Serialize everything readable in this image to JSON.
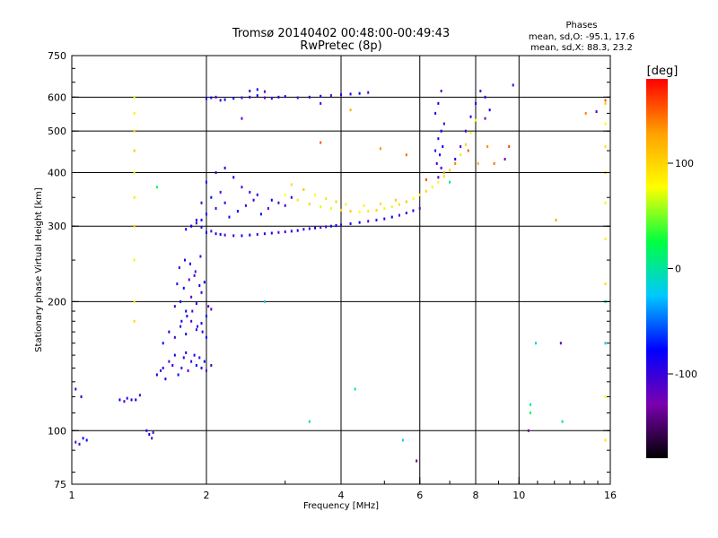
{
  "chart_data": {
    "type": "scatter",
    "title": "Tromsø 20140402 00:48:00-00:49:43",
    "subtitle": "RwPretec (8p)",
    "xlabel": "Frequency [MHz]",
    "ylabel": "Stationary phase Virtual Height [km]",
    "x_scale": "log",
    "y_scale": "log",
    "xlim": [
      1,
      16
    ],
    "ylim": [
      75,
      750
    ],
    "x_ticks": [
      1,
      2,
      4,
      6,
      8,
      10,
      16
    ],
    "x_tick_labels": [
      "1",
      "2",
      "4",
      "6",
      "8",
      "10",
      "16"
    ],
    "y_ticks": [
      75,
      100,
      200,
      300,
      400,
      500,
      600,
      750
    ],
    "y_tick_labels": [
      "75",
      "100",
      "200",
      "300",
      "400",
      "500",
      "600",
      "750"
    ],
    "grid": true,
    "stats": {
      "heading": "Phases",
      "line_o": "mean, sd,O: -95.1, 17.6",
      "line_x": "mean, sd,X:  88.3, 23.2"
    },
    "colorbar": {
      "label": "[deg]",
      "range": [
        -180,
        180
      ],
      "ticks": [
        100,
        0,
        -100
      ],
      "tick_labels": [
        "100",
        "0",
        "-100"
      ],
      "colors": [
        "#000000",
        "#7a00b0",
        "#0000ff",
        "#00c8ff",
        "#00ff40",
        "#ffff00",
        "#ffa000",
        "#ff0000"
      ]
    },
    "series": [
      {
        "phase": -95,
        "x": [
          1.02,
          1.04,
          1.06,
          1.08,
          1.02,
          1.05,
          1.28,
          1.31,
          1.33,
          1.36,
          1.39,
          1.42,
          1.47,
          1.49,
          1.51,
          1.52
        ],
        "y": [
          94,
          93,
          96,
          95,
          125,
          120,
          118,
          117,
          119,
          118,
          118,
          121,
          100,
          98,
          96,
          99
        ]
      },
      {
        "phase": -95,
        "x": [
          1.55,
          1.58,
          1.6,
          1.62,
          1.65,
          1.68,
          1.7,
          1.73,
          1.76,
          1.78,
          1.8,
          1.82,
          1.85,
          1.88,
          1.9,
          1.93,
          1.95,
          1.98,
          2.0,
          2.05,
          1.6,
          1.65,
          1.7,
          1.75,
          1.8,
          1.85,
          1.9,
          1.95,
          2.0,
          1.7,
          1.75,
          1.8,
          1.85,
          1.9,
          1.95,
          2.0,
          2.05,
          1.72,
          1.78,
          1.83,
          1.88,
          1.93,
          1.98,
          1.74,
          1.79,
          1.84,
          1.89,
          1.94,
          1.76,
          1.81,
          1.86,
          1.91,
          1.96,
          2.02
        ],
        "y": [
          135,
          138,
          140,
          132,
          145,
          142,
          150,
          135,
          140,
          148,
          152,
          138,
          145,
          150,
          142,
          148,
          140,
          145,
          138,
          142,
          160,
          170,
          165,
          175,
          168,
          180,
          172,
          178,
          165,
          195,
          200,
          190,
          205,
          198,
          210,
          185,
          192,
          220,
          215,
          225,
          230,
          218,
          222,
          240,
          250,
          245,
          235,
          255,
          180,
          185,
          190,
          175,
          170,
          195
        ]
      },
      {
        "phase": -95,
        "x": [
          1.8,
          1.85,
          1.9,
          1.95,
          2.0,
          2.05,
          2.1,
          2.15,
          2.2,
          2.3,
          2.4,
          2.5,
          2.6,
          2.7,
          2.8,
          2.9,
          3.0,
          3.1,
          3.2,
          3.3,
          3.4,
          3.5,
          3.6,
          3.7,
          3.8,
          3.9,
          4.0,
          4.2,
          4.4,
          4.6,
          4.8,
          5.0,
          5.2,
          5.4,
          5.6,
          5.8,
          6.0
        ],
        "y": [
          295,
          300,
          305,
          298,
          290,
          292,
          288,
          287,
          286,
          285,
          285,
          286,
          287,
          288,
          289,
          290,
          291,
          292,
          293,
          295,
          296,
          297,
          298,
          299,
          300,
          301,
          302,
          304,
          306,
          308,
          310,
          312,
          315,
          318,
          322,
          326,
          330
        ]
      },
      {
        "phase": -95,
        "x": [
          1.9,
          2.0,
          2.1,
          2.2,
          2.05,
          2.15,
          1.95,
          2.25,
          2.35,
          2.45,
          2.55,
          2.65,
          2.75,
          2.9,
          3.1,
          2.0,
          2.1,
          2.2,
          2.3,
          2.4,
          2.5,
          2.6,
          2.8,
          3.0,
          1.85,
          1.95
        ],
        "y": [
          310,
          320,
          330,
          340,
          350,
          360,
          340,
          315,
          325,
          335,
          345,
          320,
          330,
          340,
          350,
          380,
          400,
          410,
          390,
          370,
          360,
          355,
          345,
          335,
          300,
          310
        ]
      },
      {
        "phase": -95,
        "x": [
          2.0,
          2.05,
          2.1,
          2.15,
          2.2,
          2.3,
          2.4,
          2.5,
          2.6,
          2.7,
          2.8,
          2.9,
          3.0,
          3.2,
          3.4,
          3.6,
          3.8,
          4.0,
          4.2,
          4.4,
          4.6,
          2.5,
          2.6,
          2.7
        ],
        "y": [
          595,
          598,
          600,
          590,
          592,
          596,
          598,
          600,
          605,
          598,
          596,
          600,
          602,
          598,
          600,
          603,
          605,
          608,
          610,
          612,
          615,
          620,
          625,
          618
        ]
      },
      {
        "phase": -95,
        "x": [
          6.5,
          6.6,
          6.7,
          6.8,
          6.5,
          6.6,
          6.7,
          6.55,
          6.65,
          6.75,
          6.6,
          6.7,
          7.2,
          7.4,
          7.6,
          7.8,
          8.0,
          8.2,
          8.4,
          8.6
        ],
        "y": [
          450,
          480,
          500,
          520,
          550,
          580,
          620,
          420,
          440,
          460,
          390,
          410,
          430,
          460,
          500,
          540,
          580,
          620,
          600,
          560
        ]
      },
      {
        "phase": 90,
        "x": [
          3.0,
          3.2,
          3.4,
          3.6,
          3.8,
          4.0,
          4.2,
          4.4,
          4.6,
          4.8,
          5.0,
          5.2,
          5.4,
          5.6,
          5.8,
          6.0,
          6.2,
          6.4,
          6.6,
          6.8,
          7.0,
          7.2,
          7.4,
          7.6,
          7.8,
          8.0,
          3.1,
          3.3,
          3.5,
          3.7,
          3.9,
          4.1,
          4.5,
          4.9,
          5.3
        ],
        "y": [
          355,
          345,
          338,
          333,
          330,
          327,
          325,
          324,
          325,
          327,
          330,
          333,
          337,
          342,
          348,
          355,
          362,
          370,
          380,
          392,
          405,
          420,
          440,
          465,
          495,
          530,
          375,
          365,
          355,
          348,
          342,
          337,
          335,
          338,
          345
        ]
      },
      {
        "phase": 90,
        "x": [
          1.38,
          1.38,
          1.38,
          1.38,
          1.38,
          1.38,
          1.38,
          1.38,
          1.38,
          1.38,
          15.6,
          15.6,
          15.6,
          15.6,
          15.6,
          15.6,
          15.6,
          15.6,
          15.6,
          15.6
        ],
        "y": [
          600,
          550,
          500,
          450,
          400,
          350,
          300,
          250,
          200,
          180,
          580,
          520,
          460,
          400,
          340,
          280,
          220,
          160,
          120,
          95
        ]
      },
      {
        "phase": 0,
        "x": [
          1.55,
          2.7,
          3.4,
          4.3,
          5.5,
          7.0,
          10.6,
          10.6,
          10.9,
          12.5,
          15.6,
          15.6
        ],
        "y": [
          370,
          200,
          105,
          125,
          95,
          380,
          115,
          110,
          160,
          105,
          200,
          160
        ]
      },
      {
        "phase": 140,
        "x": [
          3.6,
          4.2,
          4.9,
          5.6,
          6.2,
          6.8,
          7.2,
          7.7,
          8.1,
          8.5,
          8.8,
          9.5,
          12.1,
          14.1,
          15.6
        ],
        "y": [
          470,
          560,
          455,
          440,
          385,
          400,
          420,
          450,
          420,
          460,
          420,
          460,
          310,
          550,
          590
        ]
      },
      {
        "phase": -120,
        "x": [
          2.4,
          3.6,
          8.4,
          9.3,
          9.7,
          5.9,
          10.5,
          12.4,
          14.9
        ],
        "y": [
          535,
          580,
          535,
          430,
          640,
          85,
          100,
          160,
          555
        ]
      }
    ]
  }
}
